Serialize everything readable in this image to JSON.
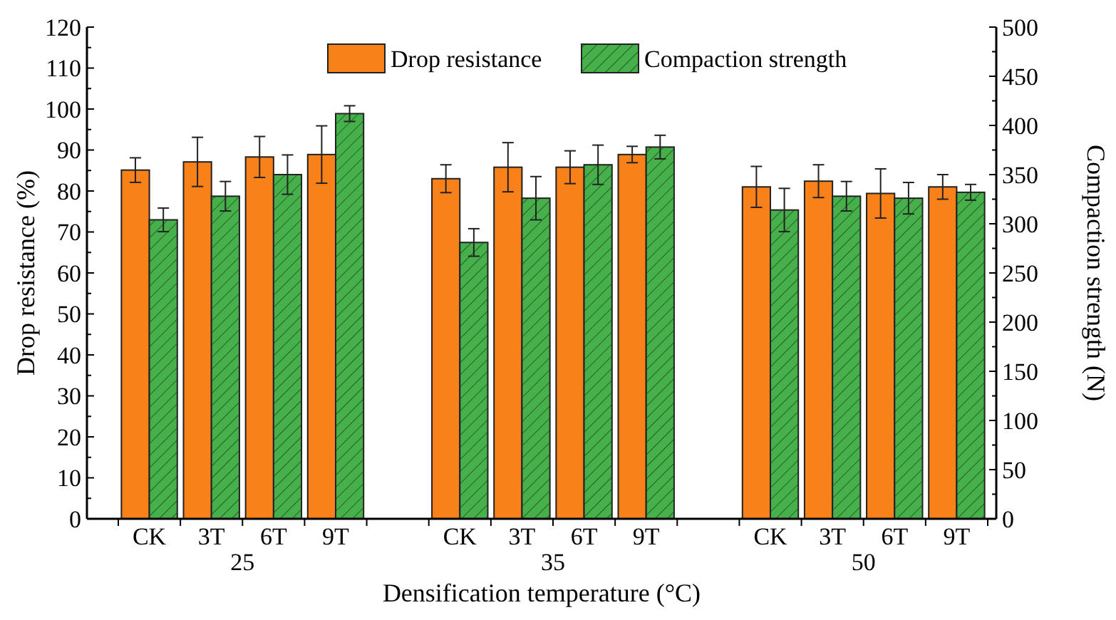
{
  "chart_data": {
    "type": "bar",
    "xlabel": "Densification temperature (°C)",
    "ylabel": "Drop resistance (%)",
    "y2label": "Compaction strength (N)",
    "categories": [
      "CK",
      "3T",
      "6T",
      "9T",
      null,
      "CK",
      "3T",
      "6T",
      "9T",
      null,
      "CK",
      "3T",
      "6T",
      "9T"
    ],
    "annotations": [
      "25",
      "35",
      "50"
    ],
    "series": [
      {
        "name": "Drop resistance",
        "color": "#f8811a",
        "values": [
          85.1,
          87.1,
          88.3,
          88.9,
          null,
          83.0,
          85.8,
          85.8,
          88.9,
          null,
          81.0,
          82.4,
          79.4,
          81.0
        ],
        "errors": [
          3,
          6,
          5,
          7,
          null,
          3.4,
          6,
          4,
          2,
          null,
          5,
          4,
          6,
          3
        ]
      },
      {
        "name": "Compaction strength",
        "color": "#46b04a",
        "axis": "y2",
        "values": [
          304,
          328,
          350,
          412,
          null,
          281,
          326,
          360,
          378,
          null,
          314,
          328,
          326,
          332
        ],
        "errors": [
          12,
          15,
          20,
          8,
          null,
          14,
          22,
          20,
          12,
          null,
          22,
          15,
          16,
          8
        ]
      }
    ],
    "ylim": [
      0,
      120
    ],
    "yticks": [
      0,
      10,
      20,
      30,
      40,
      50,
      60,
      70,
      80,
      90,
      100,
      110,
      120
    ],
    "y2lim": [
      0,
      500
    ],
    "y2ticks": [
      0,
      50,
      100,
      150,
      200,
      250,
      300,
      350,
      400,
      450,
      500
    ],
    "legend": "top",
    "grid": false
  }
}
